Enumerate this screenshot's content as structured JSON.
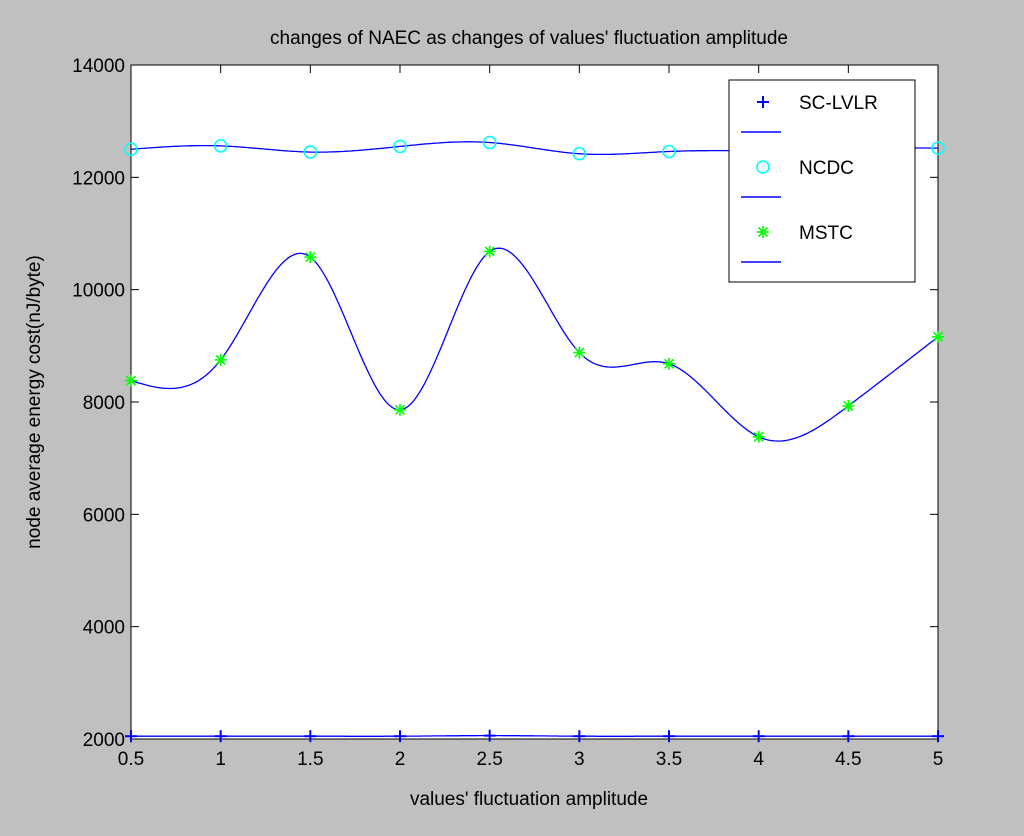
{
  "chart_data": {
    "type": "line",
    "title": "changes of NAEC as changes of values' fluctuation amplitude",
    "xlabel": "values' fluctuation amplitude",
    "ylabel": "node average energy cost(nJ/byte)",
    "x": [
      0.5,
      1,
      1.5,
      2,
      2.5,
      3,
      3.5,
      4,
      4.5,
      5
    ],
    "xlim": [
      0.5,
      5
    ],
    "ylim": [
      2000,
      14000
    ],
    "x_ticks": [
      "0.5",
      "1",
      "1.5",
      "2",
      "2.5",
      "3",
      "3.5",
      "4",
      "4.5",
      "5"
    ],
    "y_ticks": [
      "2000",
      "4000",
      "6000",
      "8000",
      "10000",
      "12000",
      "14000"
    ],
    "grid": false,
    "legend_position": "top-right",
    "series": [
      {
        "name": "SC-LVLR",
        "marker": "plus",
        "marker_color": "#0000ff",
        "line_color": "#0000ff",
        "values": [
          2050,
          2050,
          2050,
          2050,
          2060,
          2050,
          2050,
          2050,
          2050,
          2050
        ]
      },
      {
        "name": "NCDC",
        "marker": "circle",
        "marker_color": "#00ffff",
        "line_color": "#0000ff",
        "values": [
          12500,
          12560,
          12450,
          12550,
          12620,
          12420,
          12460,
          12480,
          12520,
          12520
        ]
      },
      {
        "name": "MSTC",
        "marker": "star",
        "marker_color": "#00ff00",
        "line_color": "#0000ff",
        "values": [
          8380,
          8750,
          10580,
          7860,
          10680,
          8880,
          8680,
          7380,
          7930,
          9160
        ]
      }
    ]
  }
}
